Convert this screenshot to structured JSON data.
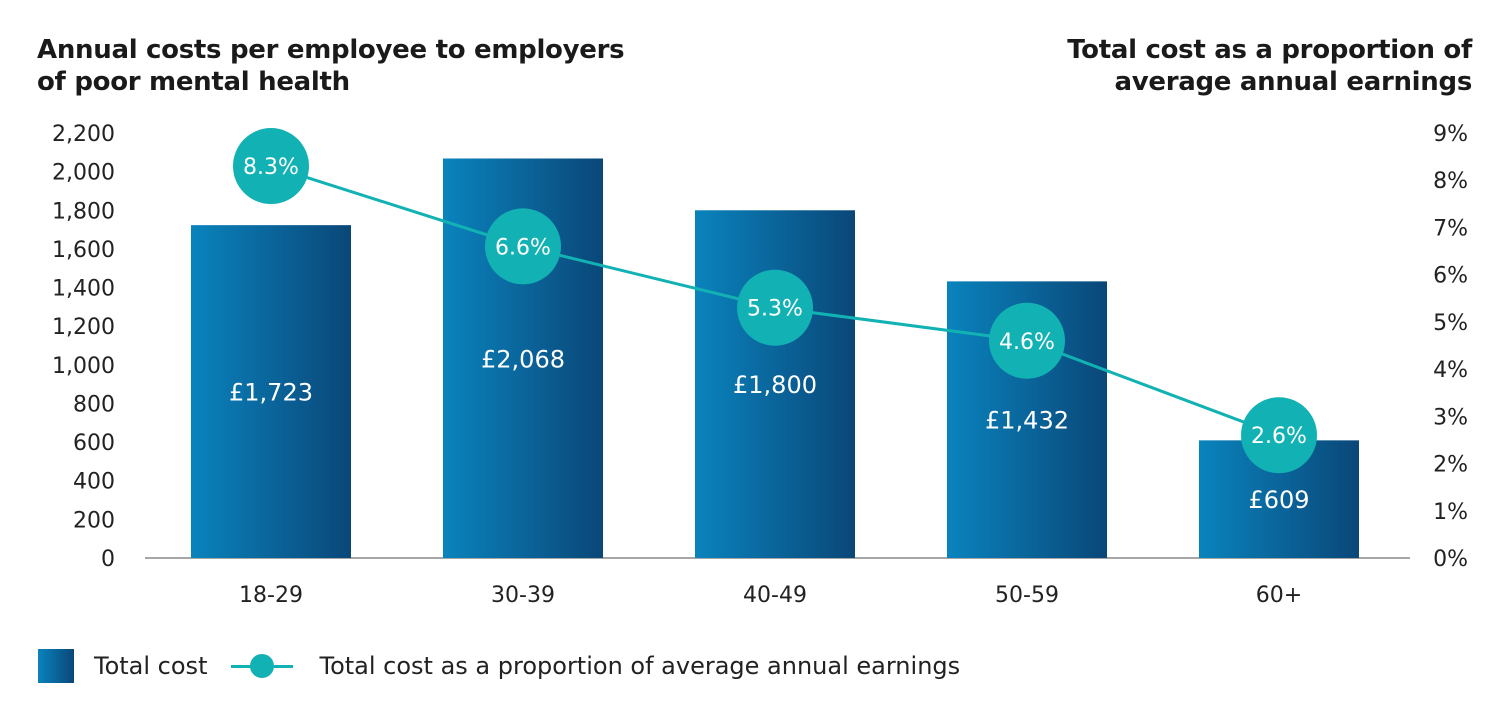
{
  "colors": {
    "bar_light": "#0a83bd",
    "bar_dark": "#0a4778",
    "line": "#12b2b4",
    "axis": "#888888"
  },
  "chart_data": {
    "type": "bar",
    "categories": [
      "18-29",
      "30-39",
      "40-49",
      "50-59",
      "60+"
    ],
    "y_axis_left": {
      "label_lines": [
        "Annual costs per employee to employers",
        "of poor mental health"
      ],
      "ticks": [
        "0",
        "200",
        "400",
        "600",
        "800",
        "1,000",
        "1,200",
        "1,400",
        "1,600",
        "1,800",
        "2,000",
        "2,200"
      ],
      "range": [
        0,
        2200
      ]
    },
    "y_axis_right": {
      "label_lines": [
        "Total cost as a proportion of",
        "average annual earnings"
      ],
      "ticks": [
        "0%",
        "1%",
        "2%",
        "3%",
        "4%",
        "5%",
        "6%",
        "7%",
        "8%",
        "9%"
      ],
      "range": [
        0,
        9
      ]
    },
    "series": [
      {
        "name": "Total cost",
        "type": "bar",
        "axis": "left",
        "values": [
          1723,
          2068,
          1800,
          1432,
          609
        ],
        "labels": [
          "£1,723",
          "£2,068",
          "£1,800",
          "£1,432",
          "£609"
        ]
      },
      {
        "name": "Total cost as a proportion of average annual earnings",
        "type": "line",
        "axis": "right",
        "values": [
          8.3,
          6.6,
          5.3,
          4.6,
          2.6
        ],
        "labels": [
          "8.3%",
          "6.6%",
          "5.3%",
          "4.6%",
          "2.6%"
        ]
      }
    ],
    "legend_position": "bottom-left",
    "grid": false
  }
}
